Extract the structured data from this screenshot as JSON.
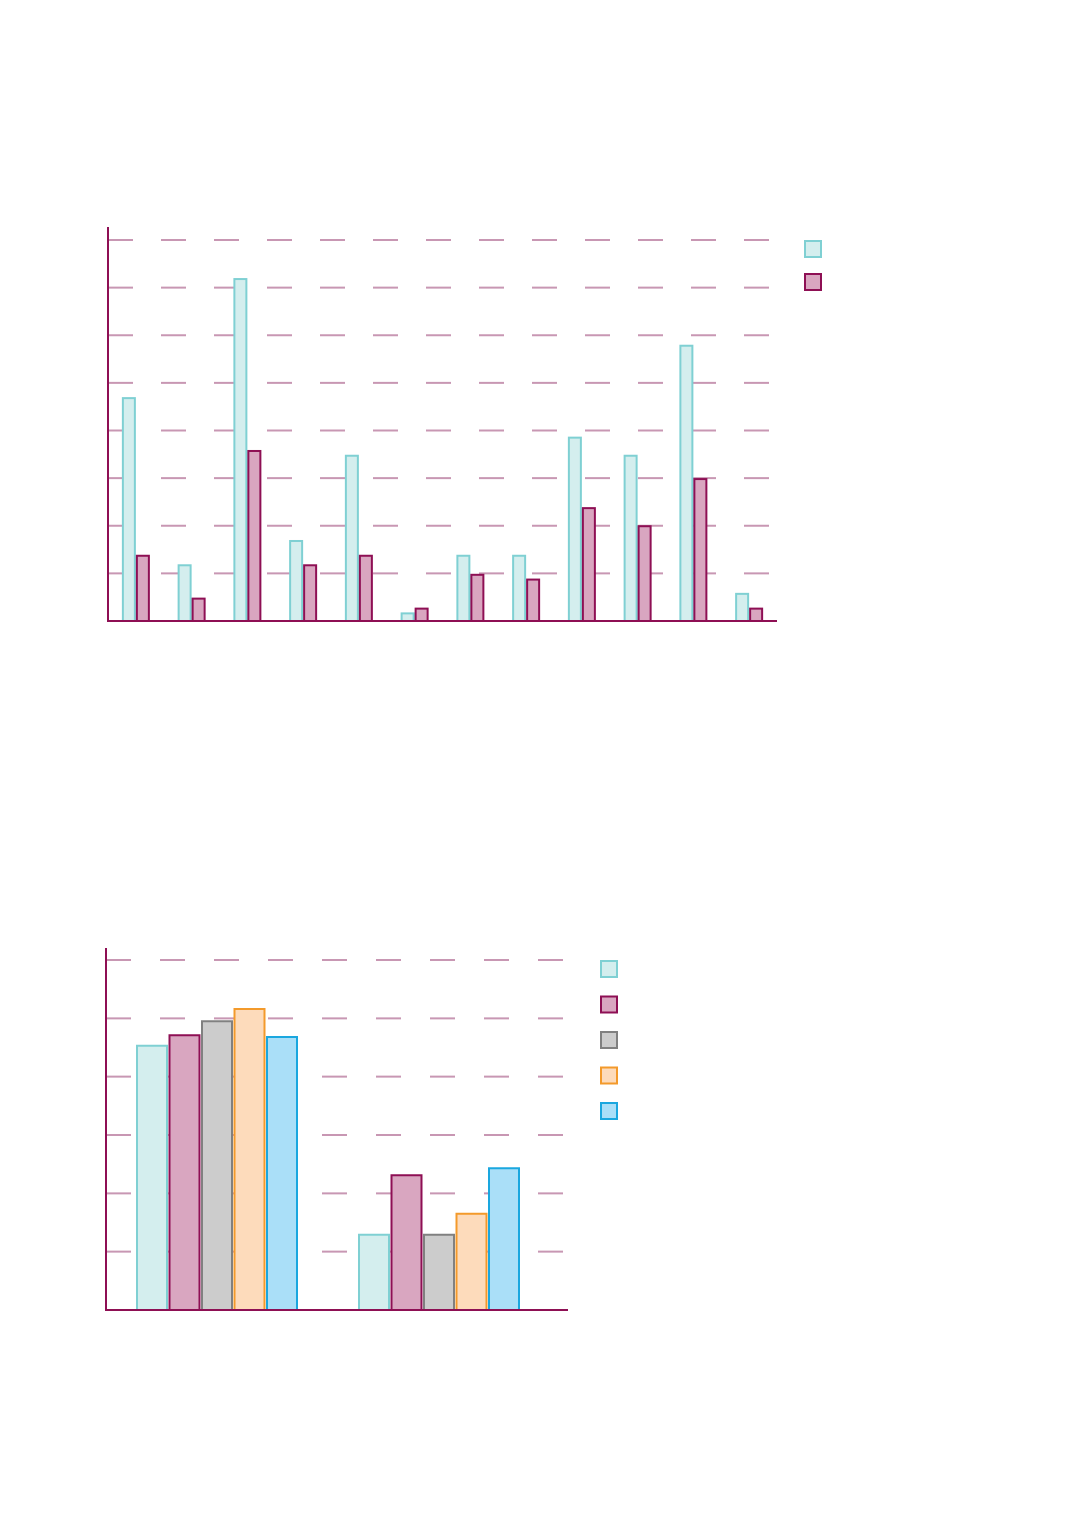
{
  "chart_data": [
    {
      "type": "bar",
      "title": "",
      "xlabel": "",
      "ylabel": "",
      "ylim": [
        0,
        8
      ],
      "grid": true,
      "legend_position": "top-right",
      "categories": [
        "",
        "",
        "",
        "",
        "",
        "",
        "",
        "",
        "",
        "",
        "",
        ""
      ],
      "series": [
        {
          "color": "#7fd0d3",
          "fill": "#d4eeee",
          "values": [
            4.68,
            1.17,
            7.18,
            1.68,
            3.47,
            0.16,
            1.37,
            1.37,
            3.85,
            3.47,
            5.78,
            0.57
          ]
        },
        {
          "color": "#8e0f54",
          "fill": "#d9a6c0",
          "values": [
            1.37,
            0.47,
            3.57,
            1.17,
            1.37,
            0.26,
            0.97,
            0.87,
            2.37,
            1.99,
            2.98,
            0.26
          ]
        }
      ]
    },
    {
      "type": "bar",
      "title": "",
      "xlabel": "",
      "ylabel": "",
      "ylim": [
        0,
        6
      ],
      "grid": true,
      "legend_position": "top-right",
      "categories": [
        "",
        ""
      ],
      "series": [
        {
          "color": "#7fd0d3",
          "fill": "#d4eeee",
          "values": [
            4.53,
            1.29
          ]
        },
        {
          "color": "#8e0f54",
          "fill": "#d9a6c0",
          "values": [
            4.71,
            2.31
          ]
        },
        {
          "color": "#808080",
          "fill": "#cccccc",
          "values": [
            4.95,
            1.29
          ]
        },
        {
          "color": "#f39a2b",
          "fill": "#fddbbb",
          "values": [
            5.16,
            1.65
          ]
        },
        {
          "color": "#1aa7df",
          "fill": "#aadff8",
          "values": [
            4.68,
            2.43
          ]
        }
      ]
    }
  ],
  "style": {
    "axis_color": "#8e0f54",
    "grid_color": "#c897b3"
  }
}
